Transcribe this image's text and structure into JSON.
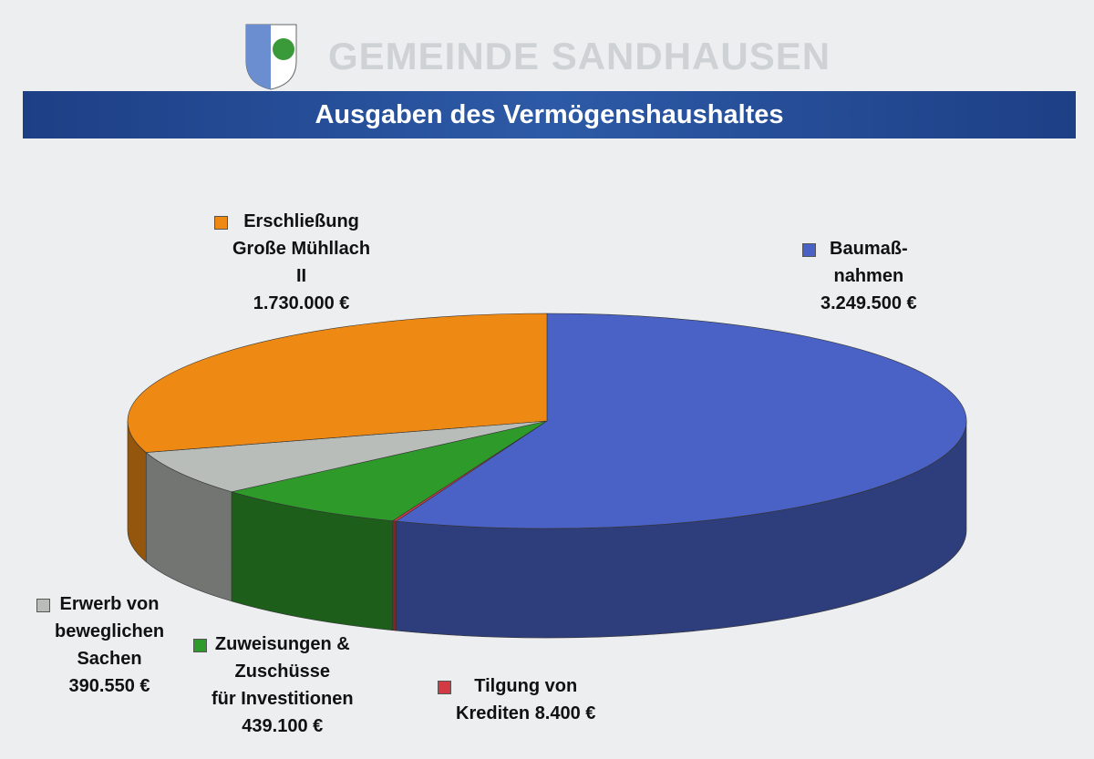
{
  "chart_data": {
    "type": "pie",
    "header": "GEMEINDE SANDHAUSEN",
    "title": "Ausgaben des Vermögenshaushaltes",
    "categories": [
      "Baumaß-\nnahmen",
      "Tilgung von\nKrediten",
      "Zuweisungen &\nZuschüsse\nfür Investitionen",
      "Erwerb von\nbeweglichen\nSachen",
      "Erschließung\nGroße Mühllach\nII"
    ],
    "values": [
      3249500,
      8400,
      439100,
      390550,
      1730000
    ],
    "value_labels": [
      "3.249.500 €",
      "8.400 €",
      "439.100 €",
      "390.550 €",
      "1.730.000 €"
    ],
    "colors": [
      "#4a62c6",
      "#d23a44",
      "#2e9a2a",
      "#b9bdb9",
      "#ee8914"
    ]
  }
}
